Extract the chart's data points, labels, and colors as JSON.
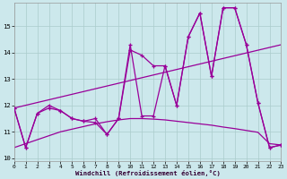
{
  "xlabel": "Windchill (Refroidissement éolien,°C)",
  "bg_color": "#cce8ec",
  "grid_color": "#aacccc",
  "line_color": "#990099",
  "xlim": [
    0,
    23
  ],
  "ylim": [
    9.9,
    15.9
  ],
  "yticks": [
    10,
    11,
    12,
    13,
    14,
    15
  ],
  "xticks": [
    0,
    1,
    2,
    3,
    4,
    5,
    6,
    7,
    8,
    9,
    10,
    11,
    12,
    13,
    14,
    15,
    16,
    17,
    18,
    19,
    20,
    21,
    22,
    23
  ],
  "curve1_x": [
    0,
    1,
    2,
    3,
    4,
    5,
    6,
    7,
    8,
    9,
    10,
    11,
    12,
    13,
    14,
    15,
    16,
    17,
    18,
    19,
    20,
    21,
    22,
    23
  ],
  "curve1_y": [
    11.9,
    10.4,
    11.7,
    11.9,
    11.8,
    11.5,
    11.4,
    11.35,
    10.9,
    11.5,
    14.1,
    13.9,
    13.5,
    13.5,
    12.0,
    14.6,
    15.5,
    13.1,
    15.7,
    15.7,
    14.3,
    12.1,
    10.4,
    10.5
  ],
  "curve2_x": [
    0,
    1,
    2,
    3,
    4,
    5,
    6,
    7,
    8,
    9,
    10,
    11,
    12,
    13,
    14,
    15,
    16,
    17,
    18,
    19,
    20,
    21,
    22,
    23
  ],
  "curve2_y": [
    11.9,
    10.4,
    11.7,
    12.0,
    11.8,
    11.5,
    11.4,
    11.5,
    10.9,
    11.5,
    14.3,
    11.6,
    11.6,
    13.5,
    12.0,
    14.6,
    15.5,
    13.1,
    15.7,
    15.7,
    14.3,
    12.1,
    10.4,
    10.5
  ],
  "smooth_x": [
    0,
    1,
    2,
    3,
    4,
    5,
    6,
    7,
    8,
    9,
    10,
    11,
    12,
    13,
    14,
    15,
    16,
    17,
    18,
    19,
    20,
    21,
    22,
    23
  ],
  "smooth_y": [
    10.4,
    10.55,
    10.7,
    10.85,
    11.0,
    11.1,
    11.2,
    11.3,
    11.38,
    11.45,
    11.5,
    11.5,
    11.48,
    11.45,
    11.4,
    11.35,
    11.3,
    11.25,
    11.18,
    11.12,
    11.05,
    10.98,
    10.55,
    10.5
  ],
  "trend_x": [
    0,
    23
  ],
  "trend_y": [
    11.9,
    14.3
  ]
}
